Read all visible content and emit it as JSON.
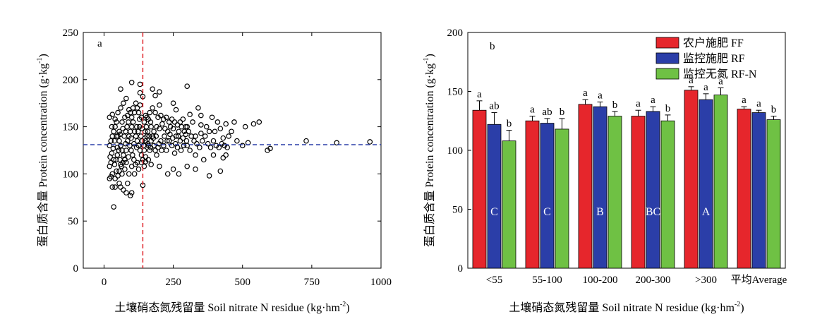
{
  "chart_data": [
    {
      "type": "scatter",
      "panel_label": "a",
      "xlabel": "土壤硝态氮残留量 Soil nitrate N residue (kg·hm",
      "xlabel_sup": "-2",
      "xlabel_end": ")",
      "ylabel": "蛋白质含量 Protein concentration (g·kg",
      "ylabel_sup": "-1",
      "ylabel_end": ")",
      "xlim": [
        -75,
        1000
      ],
      "ylim": [
        0,
        250
      ],
      "xticks": [
        0,
        250,
        500,
        750,
        1000
      ],
      "yticks": [
        0,
        50,
        100,
        150,
        200,
        250
      ],
      "vline_x": 140,
      "hline_y": 131,
      "vline_color": "#e0262c",
      "hline_color": "#2b3ea8",
      "points": [
        [
          35,
          65
        ],
        [
          85,
          90
        ],
        [
          140,
          88
        ],
        [
          150,
          113
        ],
        [
          55,
          103
        ],
        [
          60,
          190
        ],
        [
          100,
          197
        ],
        [
          130,
          195
        ],
        [
          130,
          186
        ],
        [
          140,
          182
        ],
        [
          200,
          187
        ],
        [
          175,
          190
        ],
        [
          185,
          183
        ],
        [
          300,
          193
        ],
        [
          340,
          170
        ],
        [
          200,
          173
        ],
        [
          250,
          175
        ],
        [
          260,
          168
        ],
        [
          310,
          163
        ],
        [
          350,
          162
        ],
        [
          390,
          160
        ],
        [
          410,
          155
        ],
        [
          440,
          153
        ],
        [
          470,
          155
        ],
        [
          510,
          150
        ],
        [
          540,
          153
        ],
        [
          560,
          155
        ],
        [
          460,
          145
        ],
        [
          420,
          148
        ],
        [
          380,
          145
        ],
        [
          350,
          143
        ],
        [
          330,
          140
        ],
        [
          300,
          130
        ],
        [
          310,
          125
        ],
        [
          330,
          120
        ],
        [
          360,
          115
        ],
        [
          395,
          120
        ],
        [
          430,
          117
        ],
        [
          440,
          120
        ],
        [
          420,
          103
        ],
        [
          380,
          98
        ],
        [
          330,
          105
        ],
        [
          300,
          108
        ],
        [
          270,
          100
        ],
        [
          250,
          105
        ],
        [
          230,
          100
        ],
        [
          200,
          108
        ],
        [
          170,
          110
        ],
        [
          150,
          118
        ],
        [
          120,
          112
        ],
        [
          100,
          108
        ],
        [
          80,
          112
        ],
        [
          60,
          110
        ],
        [
          45,
          103
        ],
        [
          30,
          100
        ],
        [
          25,
          97
        ],
        [
          20,
          95
        ],
        [
          30,
          86
        ],
        [
          40,
          86
        ],
        [
          55,
          90
        ],
        [
          60,
          86
        ],
        [
          70,
          83
        ],
        [
          80,
          80
        ],
        [
          95,
          77
        ],
        [
          100,
          80
        ],
        [
          20,
          160
        ],
        [
          30,
          163
        ],
        [
          40,
          158
        ],
        [
          50,
          165
        ],
        [
          60,
          170
        ],
        [
          70,
          175
        ],
        [
          80,
          180
        ],
        [
          90,
          168
        ],
        [
          100,
          160
        ],
        [
          110,
          165
        ],
        [
          120,
          170
        ],
        [
          130,
          173
        ],
        [
          150,
          162
        ],
        [
          160,
          158
        ],
        [
          170,
          150
        ],
        [
          180,
          145
        ],
        [
          190,
          150
        ],
        [
          200,
          148
        ],
        [
          210,
          153
        ],
        [
          220,
          148
        ],
        [
          230,
          145
        ],
        [
          240,
          150
        ],
        [
          250,
          148
        ],
        [
          260,
          140
        ],
        [
          270,
          145
        ],
        [
          280,
          150
        ],
        [
          290,
          145
        ],
        [
          300,
          150
        ],
        [
          320,
          155
        ],
        [
          350,
          152
        ],
        [
          370,
          150
        ],
        [
          400,
          145
        ],
        [
          430,
          138
        ],
        [
          450,
          140
        ],
        [
          480,
          135
        ],
        [
          500,
          130
        ],
        [
          520,
          133
        ],
        [
          600,
          127
        ],
        [
          590,
          125
        ],
        [
          730,
          135
        ],
        [
          840,
          133
        ],
        [
          960,
          134
        ],
        [
          20,
          130
        ],
        [
          25,
          135
        ],
        [
          30,
          140
        ],
        [
          35,
          145
        ],
        [
          40,
          150
        ],
        [
          45,
          155
        ],
        [
          50,
          140
        ],
        [
          55,
          135
        ],
        [
          60,
          130
        ],
        [
          65,
          125
        ],
        [
          70,
          120
        ],
        [
          75,
          115
        ],
        [
          80,
          125
        ],
        [
          85,
          135
        ],
        [
          90,
          140
        ],
        [
          95,
          145
        ],
        [
          100,
          150
        ],
        [
          105,
          155
        ],
        [
          110,
          145
        ],
        [
          115,
          140
        ],
        [
          120,
          135
        ],
        [
          125,
          130
        ],
        [
          130,
          125
        ],
        [
          135,
          120
        ],
        [
          140,
          115
        ],
        [
          145,
          125
        ],
        [
          150,
          135
        ],
        [
          155,
          140
        ],
        [
          160,
          130
        ],
        [
          165,
          125
        ],
        [
          170,
          135
        ],
        [
          175,
          140
        ],
        [
          180,
          130
        ],
        [
          185,
          125
        ],
        [
          190,
          120
        ],
        [
          195,
          128
        ],
        [
          205,
          135
        ],
        [
          215,
          130
        ],
        [
          225,
          125
        ],
        [
          235,
          135
        ],
        [
          245,
          130
        ],
        [
          255,
          122
        ],
        [
          265,
          128
        ],
        [
          275,
          135
        ],
        [
          285,
          138
        ],
        [
          295,
          142
        ],
        [
          22,
          118
        ],
        [
          28,
          122
        ],
        [
          33,
          127
        ],
        [
          38,
          110
        ],
        [
          43,
          115
        ],
        [
          48,
          120
        ],
        [
          53,
          125
        ],
        [
          58,
          115
        ],
        [
          63,
          108
        ],
        [
          68,
          112
        ],
        [
          73,
          140
        ],
        [
          78,
          145
        ],
        [
          83,
          150
        ],
        [
          88,
          155
        ],
        [
          93,
          130
        ],
        [
          98,
          125
        ],
        [
          103,
          120
        ],
        [
          108,
          115
        ],
        [
          113,
          110
        ],
        [
          118,
          128
        ],
        [
          123,
          145
        ],
        [
          128,
          150
        ],
        [
          133,
          140
        ],
        [
          138,
          135
        ],
        [
          143,
          130
        ],
        [
          148,
          145
        ],
        [
          153,
          150
        ],
        [
          158,
          145
        ],
        [
          163,
          140
        ],
        [
          168,
          155
        ],
        [
          28,
          150
        ],
        [
          38,
          135
        ],
        [
          48,
          128
        ],
        [
          58,
          142
        ],
        [
          68,
          148
        ],
        [
          78,
          132
        ],
        [
          88,
          118
        ],
        [
          98,
          138
        ],
        [
          108,
          132
        ],
        [
          118,
          150
        ],
        [
          128,
          158
        ],
        [
          138,
          148
        ],
        [
          148,
          138
        ],
        [
          158,
          132
        ],
        [
          168,
          128
        ],
        [
          178,
          138
        ],
        [
          188,
          140
        ],
        [
          198,
          132
        ],
        [
          208,
          125
        ],
        [
          218,
          140
        ],
        [
          228,
          135
        ],
        [
          238,
          142
        ],
        [
          248,
          138
        ],
        [
          258,
          132
        ],
        [
          268,
          140
        ],
        [
          278,
          125
        ],
        [
          288,
          130
        ],
        [
          298,
          135
        ],
        [
          40,
          95
        ],
        [
          50,
          98
        ],
        [
          65,
          100
        ],
        [
          75,
          105
        ],
        [
          90,
          100
        ],
        [
          110,
          100
        ],
        [
          125,
          105
        ],
        [
          135,
          112
        ],
        [
          145,
          108
        ],
        [
          160,
          115
        ],
        [
          20,
          108
        ],
        [
          25,
          112
        ],
        [
          35,
          115
        ],
        [
          45,
          140
        ],
        [
          55,
          145
        ],
        [
          65,
          155
        ],
        [
          75,
          160
        ],
        [
          85,
          162
        ],
        [
          95,
          165
        ],
        [
          105,
          170
        ],
        [
          115,
          175
        ],
        [
          125,
          165
        ],
        [
          135,
          160
        ],
        [
          145,
          155
        ],
        [
          155,
          160
        ],
        [
          165,
          165
        ],
        [
          175,
          170
        ],
        [
          185,
          165
        ],
        [
          195,
          160
        ],
        [
          205,
          162
        ],
        [
          215,
          158
        ],
        [
          225,
          160
        ],
        [
          235,
          155
        ],
        [
          245,
          158
        ],
        [
          255,
          155
        ],
        [
          265,
          152
        ],
        [
          275,
          155
        ],
        [
          285,
          158
        ],
        [
          295,
          150
        ],
        [
          305,
          145
        ],
        [
          315,
          140
        ],
        [
          325,
          135
        ],
        [
          335,
          132
        ],
        [
          345,
          128
        ],
        [
          355,
          135
        ],
        [
          365,
          140
        ],
        [
          375,
          132
        ],
        [
          385,
          128
        ],
        [
          395,
          135
        ],
        [
          405,
          130
        ],
        [
          415,
          128
        ],
        [
          425,
          132
        ],
        [
          435,
          130
        ],
        [
          445,
          128
        ]
      ],
      "point_style": "open-circle"
    },
    {
      "type": "bar",
      "panel_label": "b",
      "xlabel": "土壤硝态氮残留量 Soil nitrate N residue (kg·hm",
      "xlabel_sup": "-2",
      "xlabel_end": ")",
      "ylabel": "蛋白质含量 Protein concentration (g·kg",
      "ylabel_sup": "-1",
      "ylabel_end": ")",
      "ylim": [
        0,
        200
      ],
      "yticks": [
        0,
        50,
        100,
        150,
        200
      ],
      "categories": [
        "<55",
        "55-100",
        "100-200",
        "200-300",
        ">300",
        "平均Average"
      ],
      "group_letters": [
        "C",
        "C",
        "B",
        "BC",
        "A",
        ""
      ],
      "series": [
        {
          "name": "农户施肥 FF",
          "color": "#e6262c",
          "values": [
            134,
            125,
            139,
            129,
            151,
            135
          ],
          "errors": [
            8,
            4,
            4,
            5,
            3,
            2
          ],
          "letters": [
            "a",
            "a",
            "a",
            "a",
            "a",
            "a"
          ]
        },
        {
          "name": "监控施肥 RF",
          "color": "#2b3ea8",
          "values": [
            122,
            123,
            137,
            133,
            143,
            132
          ],
          "errors": [
            10,
            4,
            4,
            4,
            5,
            2
          ],
          "letters": [
            "ab",
            "ab",
            "a",
            "a",
            "a",
            "a"
          ]
        },
        {
          "name": "监控无氮 RF-N",
          "color": "#6fc144",
          "values": [
            108,
            118,
            129,
            125,
            147,
            126
          ],
          "errors": [
            9,
            9,
            4,
            5,
            6,
            3
          ],
          "letters": [
            "b",
            "b",
            "b",
            "b",
            "a",
            "b"
          ]
        }
      ],
      "legend_position": "top-right"
    }
  ]
}
